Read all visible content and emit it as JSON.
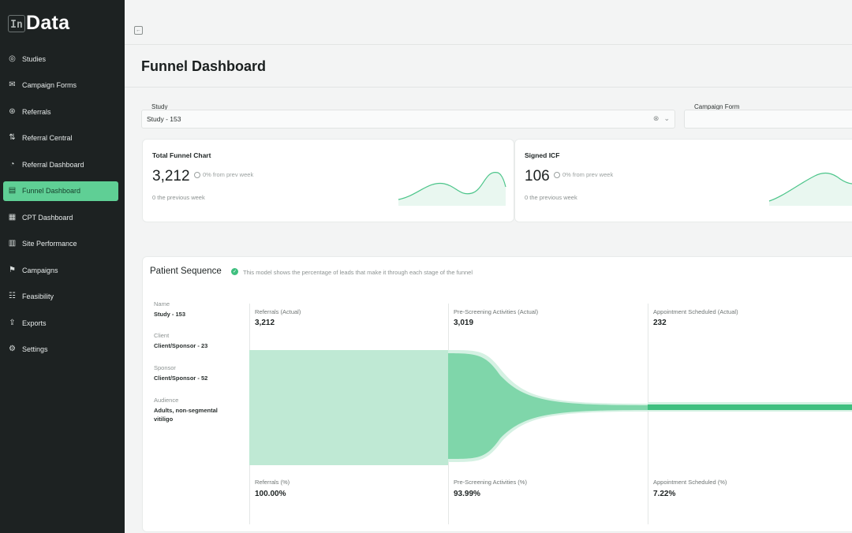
{
  "app": {
    "logo_mark": "In",
    "logo_text": "Data"
  },
  "sidebar": {
    "items": [
      {
        "label": "Studies",
        "icon": "studies-icon",
        "glyph": "◎"
      },
      {
        "label": "Campaign Forms",
        "icon": "campaign-forms-icon",
        "glyph": "✉"
      },
      {
        "label": "Referrals",
        "icon": "referrals-icon",
        "glyph": "⊛"
      },
      {
        "label": "Referral Central",
        "icon": "referral-central-icon",
        "glyph": "⇅"
      },
      {
        "label": "Referral Dashboard",
        "icon": "referral-dashboard-icon",
        "glyph": "◔"
      },
      {
        "label": "Funnel Dashboard",
        "icon": "funnel-dashboard-icon",
        "glyph": "▤"
      },
      {
        "label": "CPT Dashboard",
        "icon": "cpt-dashboard-icon",
        "glyph": "▦"
      },
      {
        "label": "Site Performance",
        "icon": "site-performance-icon",
        "glyph": "▥"
      },
      {
        "label": "Campaigns",
        "icon": "campaigns-icon",
        "glyph": "⚑"
      },
      {
        "label": "Feasibility",
        "icon": "feasibility-icon",
        "glyph": "☷"
      },
      {
        "label": "Exports",
        "icon": "exports-icon",
        "glyph": "⇪"
      },
      {
        "label": "Settings",
        "icon": "settings-icon",
        "glyph": "⚙"
      }
    ],
    "active_index": 5
  },
  "page": {
    "title": "Funnel Dashboard"
  },
  "filters": {
    "study_label": "Study",
    "study_value": "Study - 153",
    "campaign_label": "Campaign Form"
  },
  "stats": [
    {
      "title": "Total Funnel Chart",
      "value": "3,212",
      "change": "0% from prev week",
      "prev": "0 the previous week"
    },
    {
      "title": "Signed ICF",
      "value": "106",
      "change": "0% from prev week",
      "prev": "0 the previous week"
    }
  ],
  "sequence": {
    "title": "Patient Sequence",
    "description": "This model shows the percentage of leads that make it through each stage of the funnel",
    "meta": [
      {
        "label": "Name",
        "value": "Study - 153"
      },
      {
        "label": "Client",
        "value": "Client/Sponsor - 23"
      },
      {
        "label": "Sponsor",
        "value": "Client/Sponsor - 52"
      },
      {
        "label": "Audience",
        "value": "Adults, non-segmental vitiligo"
      }
    ],
    "stages": [
      {
        "label": "Referrals (Actual)",
        "value": "3,212",
        "pct_label": "Referrals (%)",
        "pct": "100.00%"
      },
      {
        "label": "Pre-Screening Activities (Actual)",
        "value": "3,019",
        "pct_label": "Pre-Screening Activities (%)",
        "pct": "93.99%"
      },
      {
        "label": "Appointment Scheduled (Actual)",
        "value": "232",
        "pct_label": "Appointment Scheduled (%)",
        "pct": "7.22%"
      }
    ]
  },
  "colors": {
    "sidebar_bg": "#1d2222",
    "accent": "#5fcf95",
    "funnel_light": "#bfe9d4",
    "funnel_mid": "#7fd6aa",
    "funnel_dark": "#3fbf7f"
  }
}
